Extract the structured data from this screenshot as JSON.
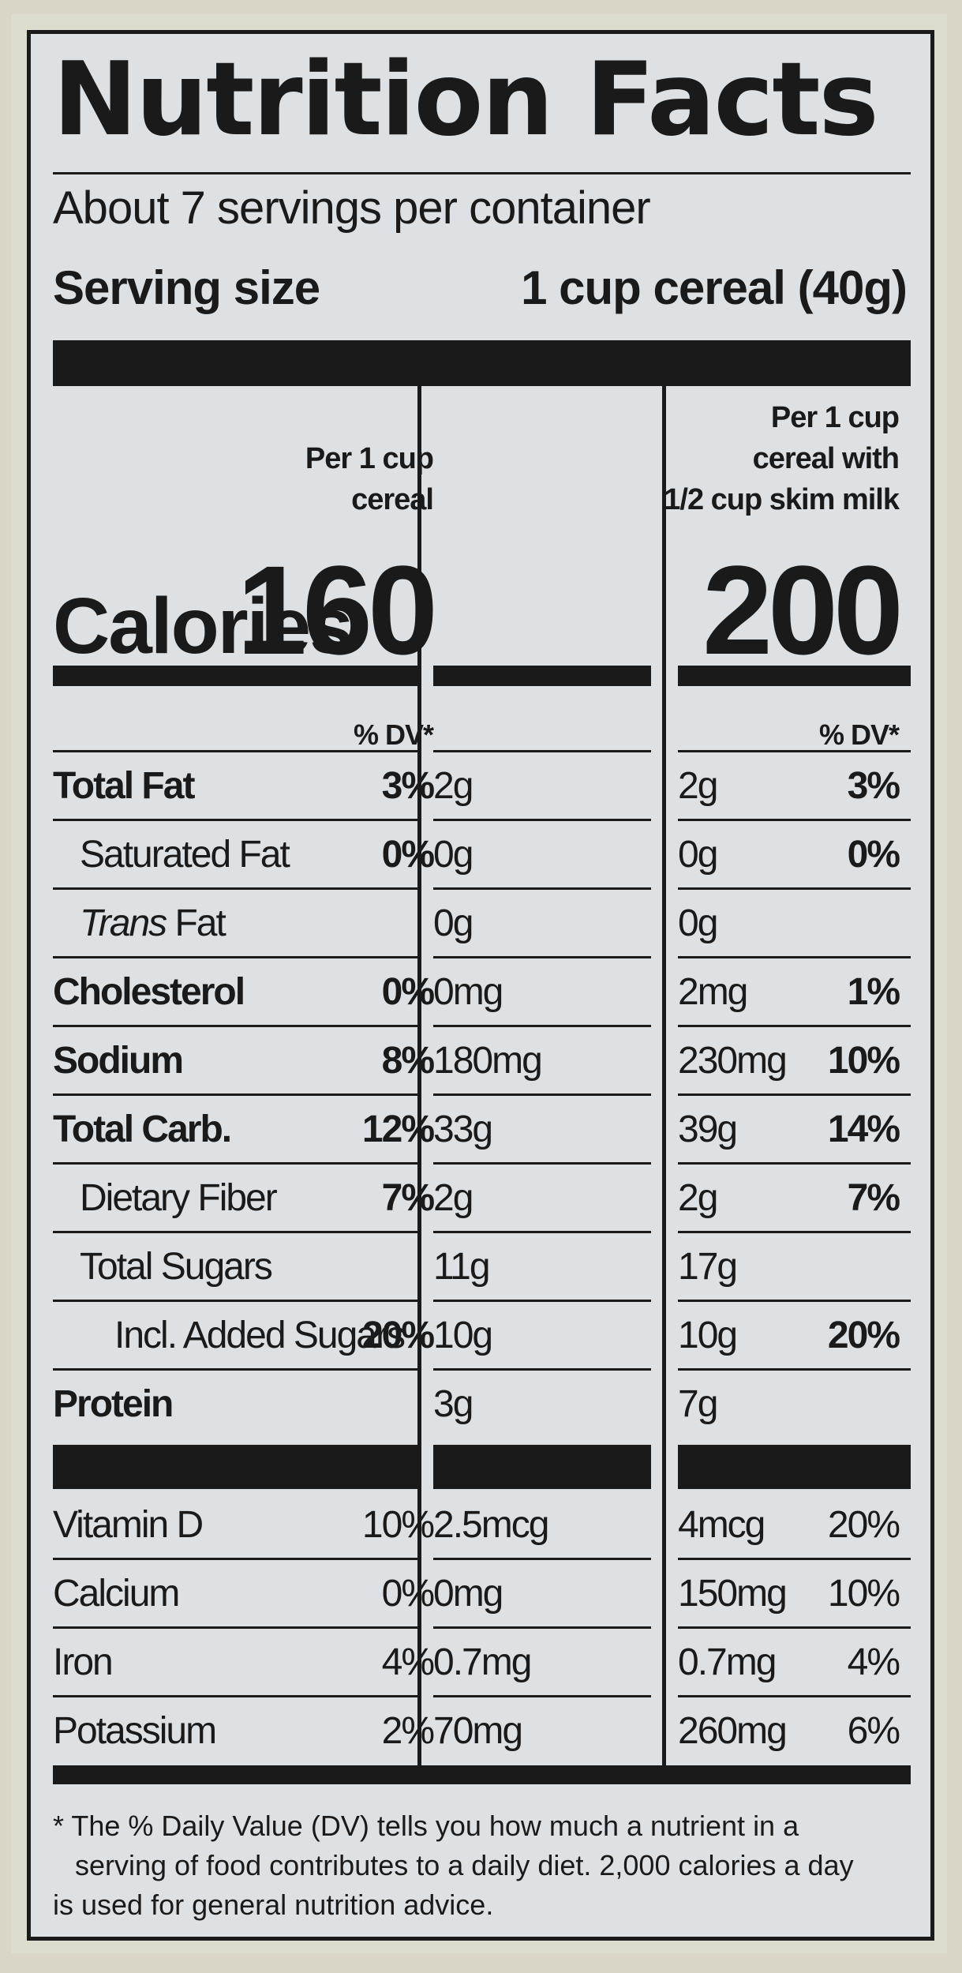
{
  "title": "Nutrition Facts",
  "servings_per_container": "About 7 servings per container",
  "serving_size_label": "Serving size",
  "serving_size_value": "1 cup cereal (40g)",
  "columns": [
    {
      "header_lines": [
        "Per 1 cup",
        "cereal"
      ],
      "calories": "160"
    },
    {
      "header_lines": [
        "Per 1 cup",
        "cereal with",
        "1/2 cup skim milk"
      ],
      "calories": "200"
    }
  ],
  "calories_label": "Calories",
  "dv_header": "% DV*",
  "nutrients": [
    {
      "name": "Total Fat",
      "bold": true,
      "indent": 0,
      "c1_amt": "2g",
      "c1_pct": "3%",
      "c2_amt": "2g",
      "c2_pct": "3%"
    },
    {
      "name": "Saturated Fat",
      "bold": false,
      "indent": 1,
      "c1_amt": "0g",
      "c1_pct": "0%",
      "c2_amt": "0g",
      "c2_pct": "0%"
    },
    {
      "name_italic": "Trans",
      "name": " Fat",
      "bold": false,
      "indent": 1,
      "c1_amt": "0g",
      "c1_pct": "",
      "c2_amt": "0g",
      "c2_pct": ""
    },
    {
      "name": "Cholesterol",
      "bold": true,
      "indent": 0,
      "c1_amt": "0mg",
      "c1_pct": "0%",
      "c2_amt": "2mg",
      "c2_pct": "1%"
    },
    {
      "name": "Sodium",
      "bold": true,
      "indent": 0,
      "c1_amt": "180mg",
      "c1_pct": "8%",
      "c2_amt": "230mg",
      "c2_pct": "10%"
    },
    {
      "name": "Total Carb.",
      "bold": true,
      "indent": 0,
      "c1_amt": "33g",
      "c1_pct": "12%",
      "c2_amt": "39g",
      "c2_pct": "14%"
    },
    {
      "name": "Dietary Fiber",
      "bold": false,
      "indent": 1,
      "c1_amt": "2g",
      "c1_pct": "7%",
      "c2_amt": "2g",
      "c2_pct": "7%"
    },
    {
      "name": "Total Sugars",
      "bold": false,
      "indent": 1,
      "c1_amt": "11g",
      "c1_pct": "",
      "c2_amt": "17g",
      "c2_pct": ""
    },
    {
      "name": "Incl. Added Sugars",
      "bold": false,
      "indent": 2,
      "c1_amt": "10g",
      "c1_pct": "20%",
      "c2_amt": "10g",
      "c2_pct": "20%"
    },
    {
      "name": "Protein",
      "bold": true,
      "indent": 0,
      "c1_amt": "3g",
      "c1_pct": "",
      "c2_amt": "7g",
      "c2_pct": ""
    }
  ],
  "vitamins": [
    {
      "name": "Vitamin D",
      "c1_amt": "2.5mcg",
      "c1_pct": "10%",
      "c2_amt": "4mcg",
      "c2_pct": "20%"
    },
    {
      "name": "Calcium",
      "c1_amt": "0mg",
      "c1_pct": "0%",
      "c2_amt": "150mg",
      "c2_pct": "10%"
    },
    {
      "name": "Iron",
      "c1_amt": "0.7mg",
      "c1_pct": "4%",
      "c2_amt": "0.7mg",
      "c2_pct": "4%"
    },
    {
      "name": "Potassium",
      "c1_amt": "70mg",
      "c1_pct": "2%",
      "c2_amt": "260mg",
      "c2_pct": "6%"
    }
  ],
  "footnote_lines": [
    "* The % Daily Value (DV) tells you how much a nutrient in a",
    "serving of food contributes to a daily diet. 2,000 calories a day",
    "is used for general nutrition advice."
  ]
}
